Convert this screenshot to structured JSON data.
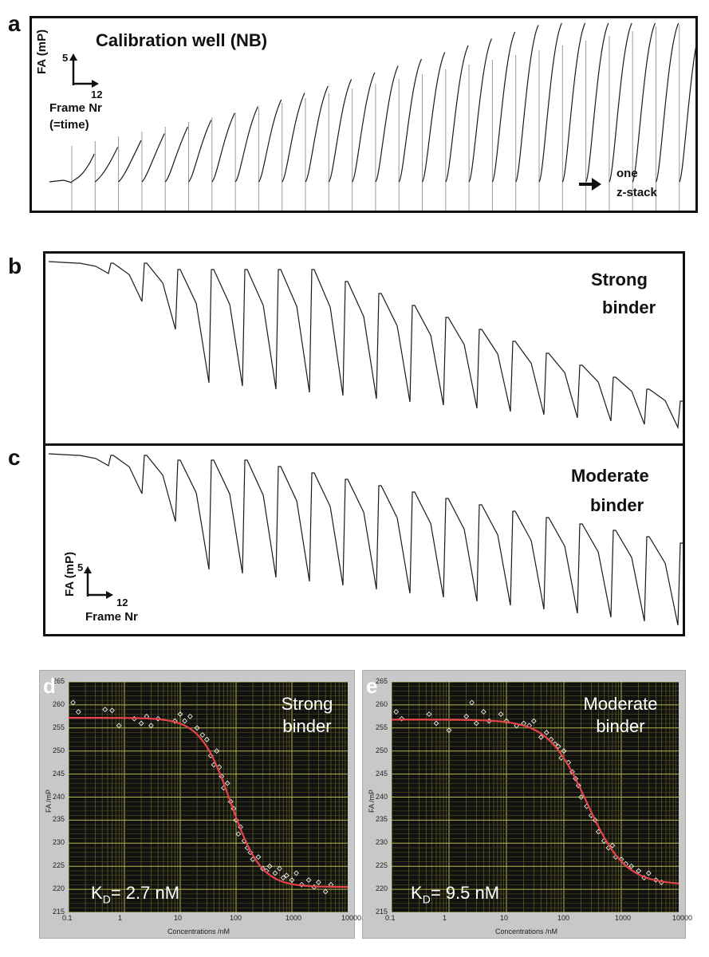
{
  "panel_labels": {
    "a": "a",
    "b": "b",
    "c": "c",
    "d": "d",
    "e": "e"
  },
  "panel_a": {
    "title": "Calibration well (NB)",
    "axis_y": "FA (mP)",
    "axis_y_val": "5",
    "axis_x_val": "12",
    "axis_x_title": "Frame Nr",
    "axis_x_sub": "(=time)",
    "arrow_text_1": "one",
    "arrow_text_2": "z-stack"
  },
  "panel_b": {
    "title_1": "Strong",
    "title_2": "binder"
  },
  "panel_c": {
    "title_1": "Moderate",
    "title_2": "binder",
    "axis_y": "FA (mP)",
    "axis_y_val": "5",
    "axis_x_val": "12",
    "axis_x_title": "Frame Nr"
  },
  "chart_data": [
    {
      "type": "scatter",
      "title": "Strong binder",
      "annotation": "K_D= 2.7 nM",
      "kd_prefix": "K",
      "kd_sub": "D",
      "kd_value": "= 2.7 nM",
      "xlabel": "Concentrations /nM",
      "ylabel": "FA /mP",
      "xscale": "log",
      "xlim": [
        0.1,
        10000
      ],
      "ylim": [
        215,
        265
      ],
      "x_ticks": [
        "0.1",
        "1",
        "10",
        "100",
        "1000",
        "10000"
      ],
      "y_ticks": [
        "215",
        "220",
        "225",
        "230",
        "235",
        "240",
        "245",
        "250",
        "255",
        "260",
        "265"
      ],
      "fit": {
        "top": 257.2,
        "bottom": 220.5,
        "ec50": 80,
        "hill": 1.6
      },
      "series": [
        {
          "name": "data",
          "x": [
            0.12,
            0.15,
            0.45,
            0.6,
            0.8,
            1.5,
            2.0,
            2.5,
            3.0,
            4.0,
            8.0,
            10,
            12,
            15,
            20,
            25,
            30,
            35,
            40,
            45,
            50,
            55,
            60,
            70,
            80,
            90,
            100,
            110,
            120,
            140,
            160,
            180,
            200,
            250,
            300,
            350,
            400,
            500,
            600,
            700,
            800,
            1000,
            1200,
            1500,
            2000,
            2500,
            3000,
            4000,
            5000
          ],
          "y": [
            260.5,
            258.5,
            259.0,
            258.8,
            255.5,
            257.0,
            256.0,
            257.5,
            255.5,
            257.0,
            256.5,
            258.0,
            256.5,
            257.5,
            255.0,
            253.5,
            252.5,
            249.0,
            247.0,
            250.0,
            246.5,
            244.5,
            242.0,
            243.0,
            239.0,
            237.5,
            235.0,
            232.0,
            233.5,
            230.5,
            229.0,
            228.0,
            226.5,
            227.0,
            224.5,
            224.0,
            225.0,
            223.5,
            224.5,
            222.5,
            223.0,
            222.0,
            223.5,
            221.0,
            222.0,
            220.5,
            221.5,
            219.5,
            221.0
          ]
        }
      ]
    },
    {
      "type": "scatter",
      "title": "Moderate binder",
      "annotation": "K_D= 9.5 nM",
      "kd_prefix": "K",
      "kd_sub": "D",
      "kd_value": "= 9.5 nM",
      "xlabel": "Concentrations /nM",
      "ylabel": "FA /mP",
      "xscale": "log",
      "xlim": [
        0.1,
        10000
      ],
      "ylim": [
        215,
        265
      ],
      "x_ticks": [
        "0.1",
        "1",
        "10",
        "100",
        "1000",
        "10000"
      ],
      "y_ticks": [
        "215",
        "220",
        "225",
        "230",
        "235",
        "240",
        "245",
        "250",
        "255",
        "260",
        "265"
      ],
      "fit": {
        "top": 256.8,
        "bottom": 221.0,
        "ec50": 250,
        "hill": 1.3
      },
      "series": [
        {
          "name": "data",
          "x": [
            0.12,
            0.15,
            0.45,
            0.6,
            1.0,
            2.0,
            2.5,
            3.0,
            4.0,
            5.0,
            8.0,
            10,
            15,
            20,
            25,
            30,
            40,
            50,
            60,
            70,
            80,
            90,
            100,
            120,
            140,
            160,
            180,
            200,
            250,
            300,
            350,
            400,
            500,
            600,
            700,
            800,
            1000,
            1200,
            1500,
            2000,
            2500,
            3000,
            4000,
            5000
          ],
          "y": [
            258.5,
            257.0,
            258.0,
            256.0,
            254.5,
            257.5,
            260.5,
            256.0,
            258.5,
            256.5,
            258.0,
            256.5,
            255.5,
            256.0,
            255.5,
            256.5,
            253.0,
            254.0,
            252.5,
            251.5,
            251.0,
            248.5,
            250.0,
            247.5,
            245.5,
            244.0,
            242.5,
            240.0,
            238.0,
            236.0,
            235.0,
            232.5,
            230.5,
            229.0,
            229.5,
            227.0,
            226.5,
            225.5,
            225.0,
            224.0,
            222.5,
            223.5,
            222.0,
            221.5
          ]
        }
      ]
    }
  ]
}
